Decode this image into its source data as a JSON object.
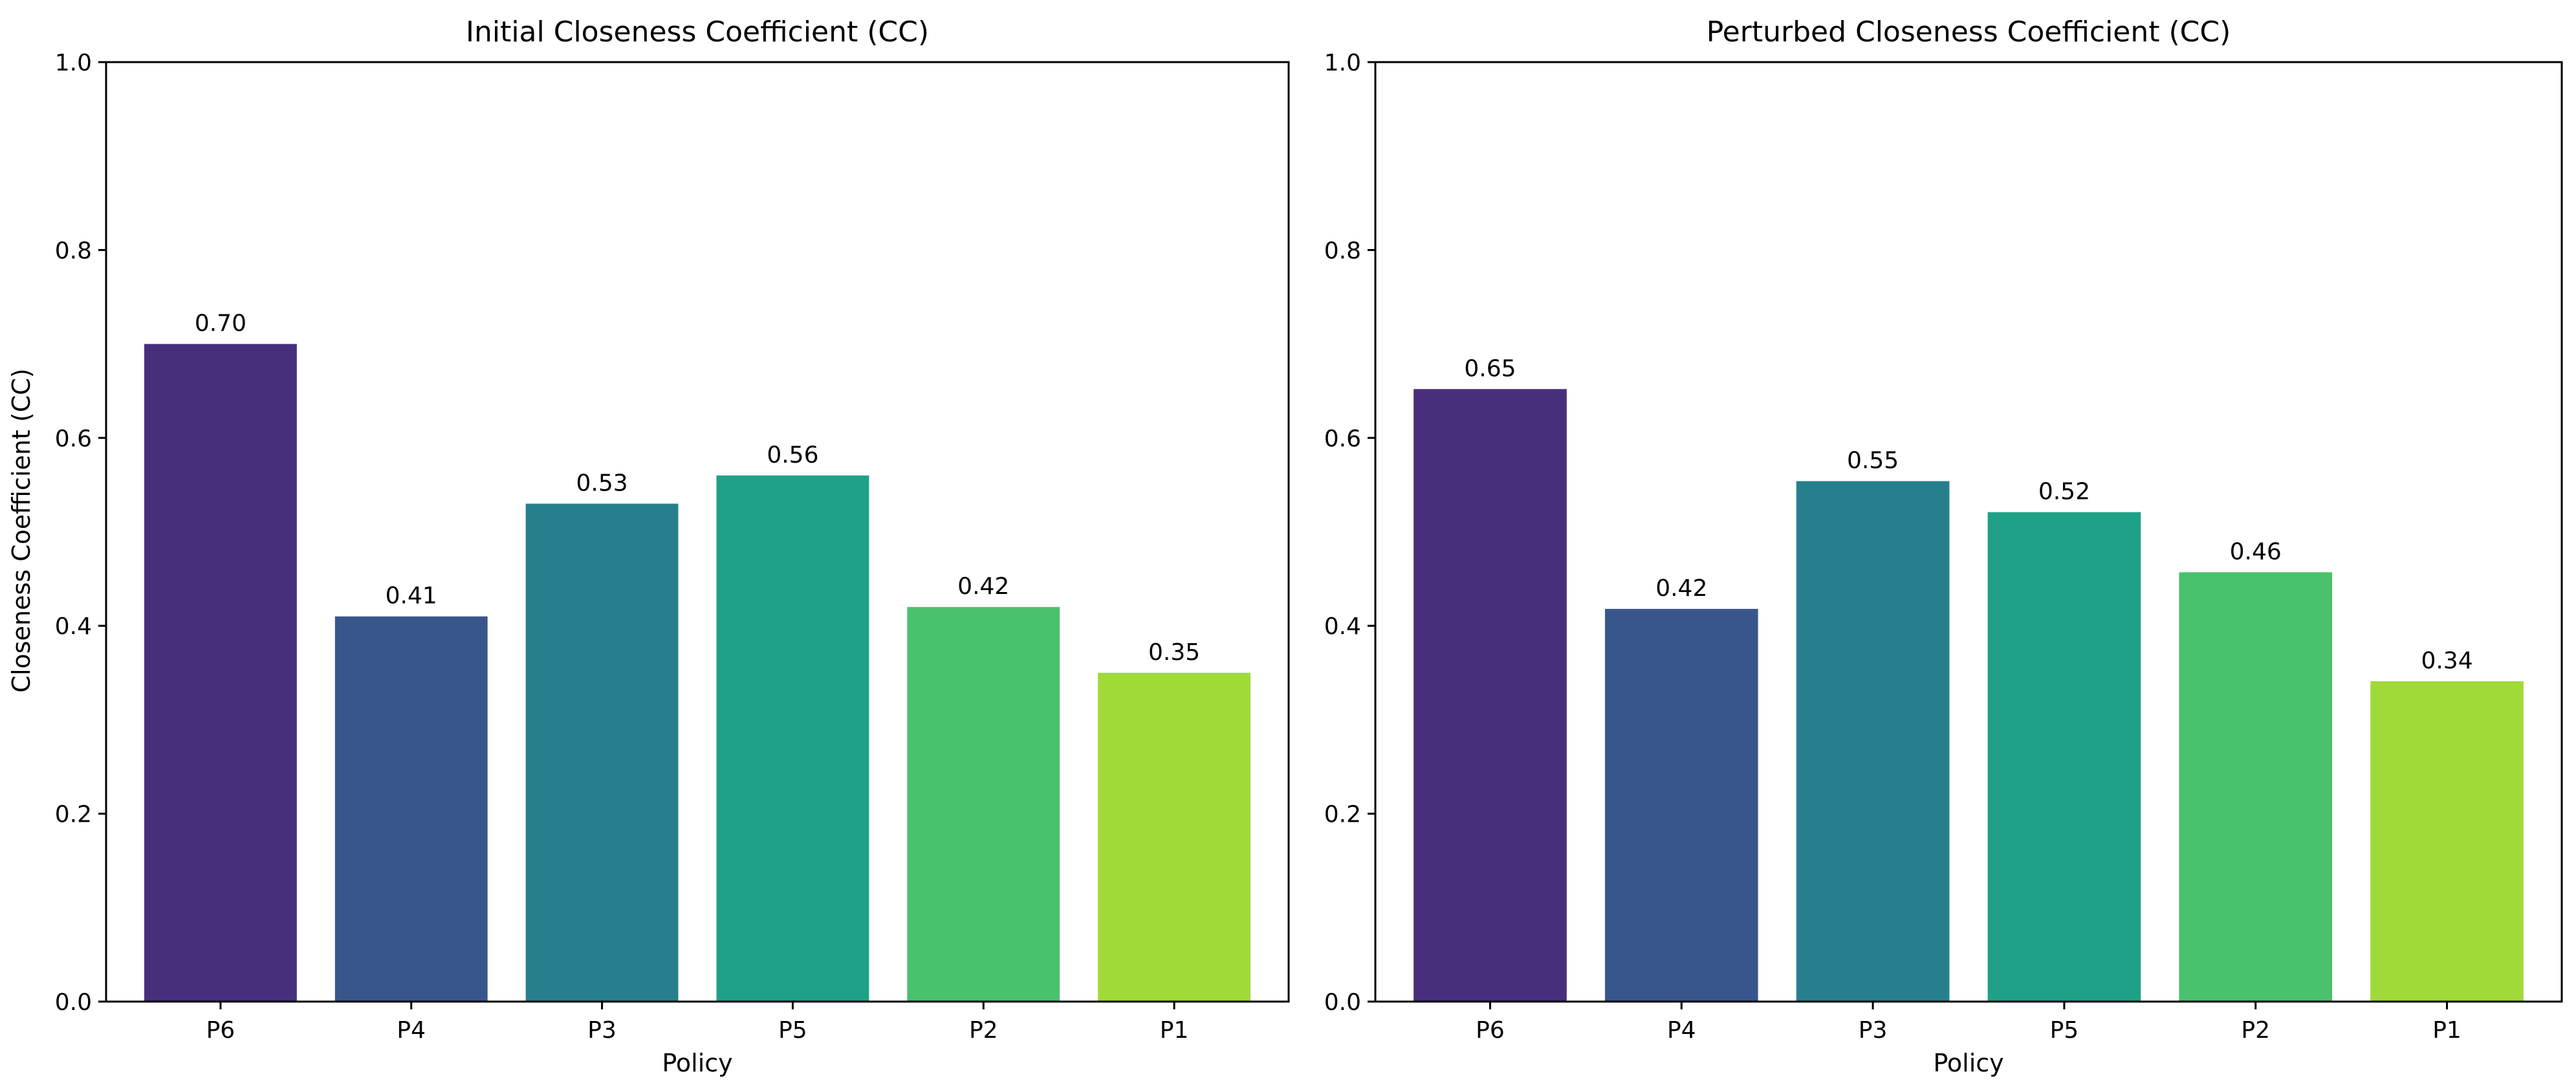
{
  "chart_data": [
    {
      "type": "bar",
      "title": "Initial Closeness Coefficient (CC)",
      "xlabel": "Policy",
      "ylabel": "Closeness Coefficient (CC)",
      "ylim": [
        0,
        1.0
      ],
      "yticks": [
        "0.0",
        "0.2",
        "0.4",
        "0.6",
        "0.8",
        "1.0"
      ],
      "categories": [
        "P6",
        "P4",
        "P3",
        "P5",
        "P2",
        "P1"
      ],
      "values": [
        0.7,
        0.41,
        0.53,
        0.56,
        0.42,
        0.35
      ],
      "value_labels": [
        "0.70",
        "0.41",
        "0.53",
        "0.56",
        "0.42",
        "0.35"
      ],
      "colors": [
        "#472f7d",
        "#39568c",
        "#277f8e",
        "#1fa187",
        "#4ac16d",
        "#a0da39"
      ],
      "grid": false
    },
    {
      "type": "bar",
      "title": "Perturbed Closeness Coefficient (CC)",
      "xlabel": "Policy",
      "ylabel": "",
      "ylim": [
        0,
        1.0
      ],
      "yticks": [
        "0.0",
        "0.2",
        "0.4",
        "0.6",
        "0.8",
        "1.0"
      ],
      "categories": [
        "P6",
        "P4",
        "P3",
        "P5",
        "P2",
        "P1"
      ],
      "values": [
        0.652,
        0.418,
        0.554,
        0.521,
        0.457,
        0.341
      ],
      "value_labels": [
        "0.65",
        "0.42",
        "0.55",
        "0.52",
        "0.46",
        "0.34"
      ],
      "colors": [
        "#472f7d",
        "#39568c",
        "#277f8e",
        "#1fa187",
        "#4ac16d",
        "#a0da39"
      ],
      "grid": false
    }
  ]
}
